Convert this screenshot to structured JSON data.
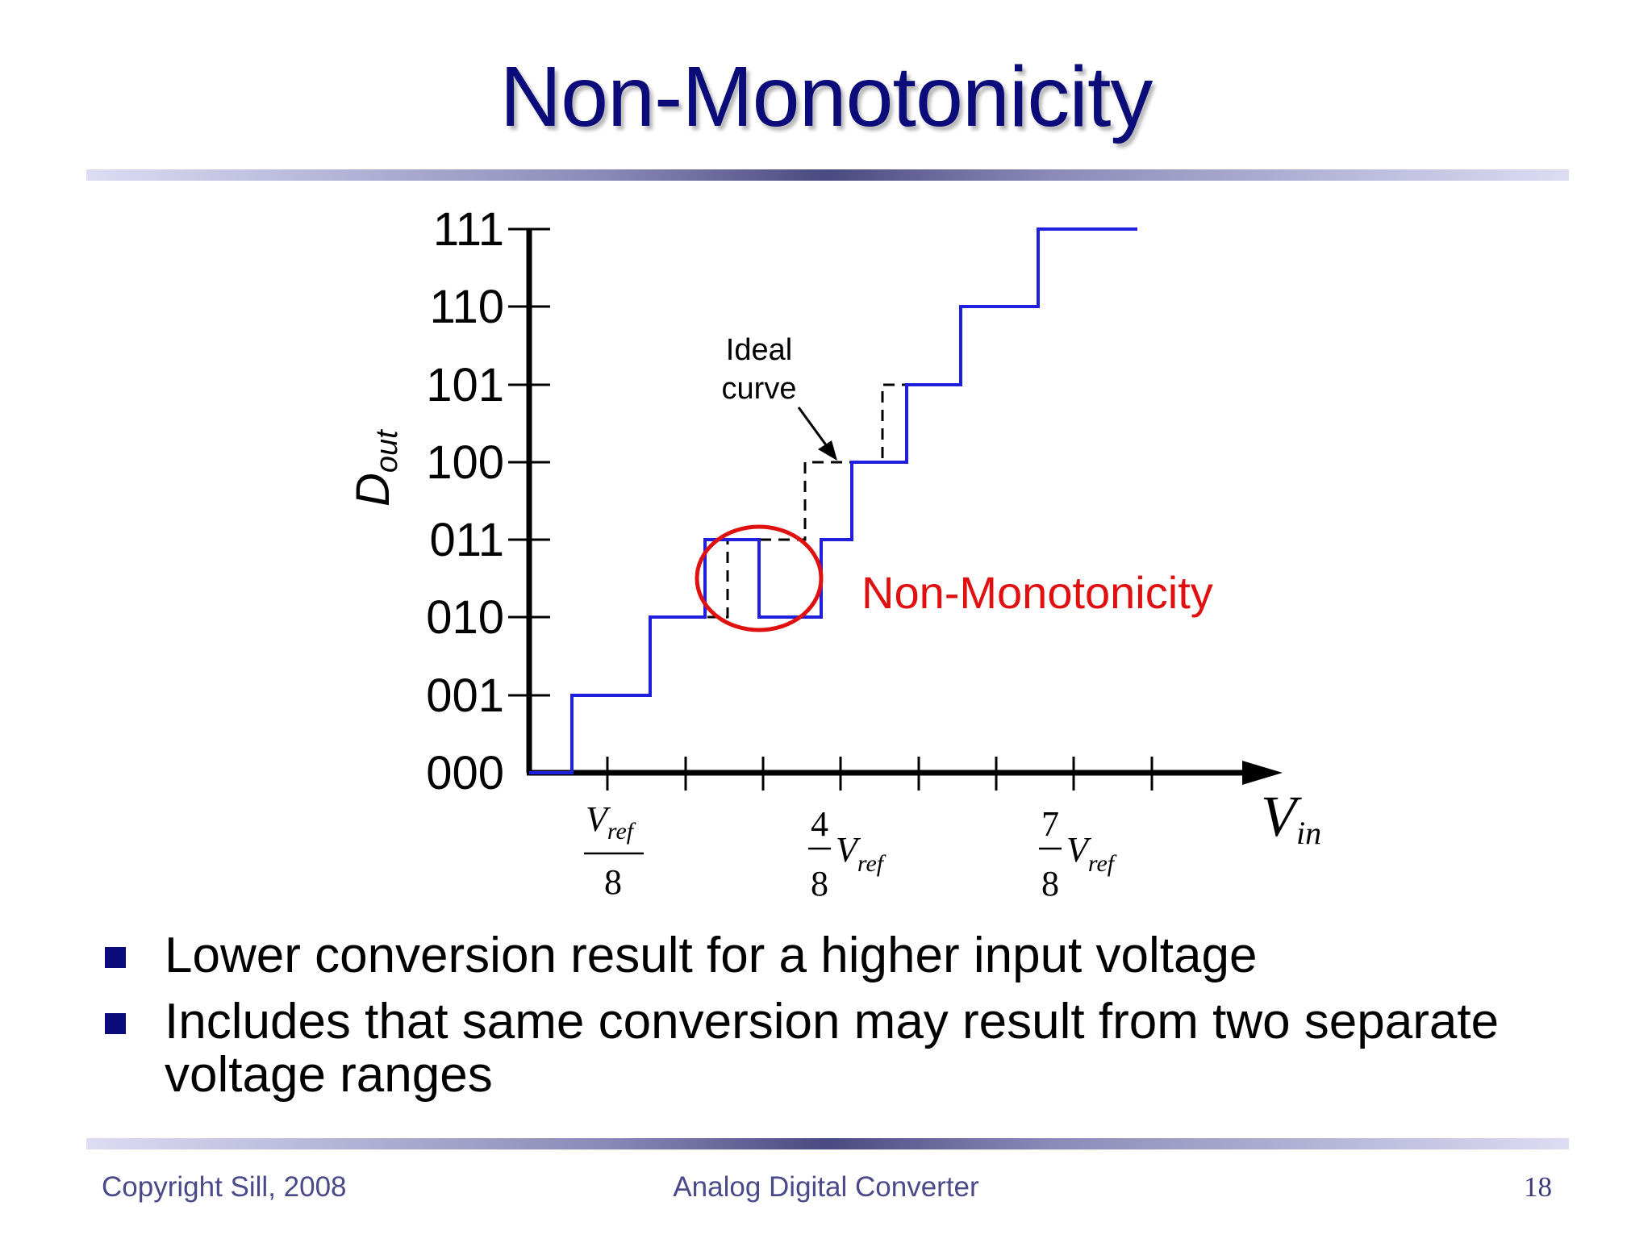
{
  "slide": {
    "title": "Non-Monotonicity",
    "bullets": [
      "Lower conversion result for a higher input voltage",
      "Includes that same conversion may result from two separate voltage ranges"
    ]
  },
  "diagram": {
    "y_axis_label": "D",
    "y_axis_label_sub": "out",
    "x_axis_label": "V",
    "x_axis_label_sub": "in",
    "y_ticks": [
      "111",
      "110",
      "101",
      "100",
      "011",
      "010",
      "001",
      "000"
    ],
    "x_tick_labels": [
      {
        "num": "V",
        "num_sub": "ref",
        "den": "8"
      },
      {
        "num": "4",
        "den": "8",
        "var": "V",
        "var_sub": "ref"
      },
      {
        "num": "7",
        "den": "8",
        "var": "V",
        "var_sub": "ref"
      }
    ],
    "ideal_curve_label": [
      "Ideal",
      "curve"
    ],
    "annotation": "Non-Monotonicity",
    "colors": {
      "actual": "#1f1fdd",
      "ideal": "#000000",
      "annotation": "#e01010",
      "title": "#0b0b7a"
    }
  },
  "footer": {
    "copyright": "Copyright Sill, 2008",
    "course": "Analog Digital Converter",
    "page": "18"
  }
}
